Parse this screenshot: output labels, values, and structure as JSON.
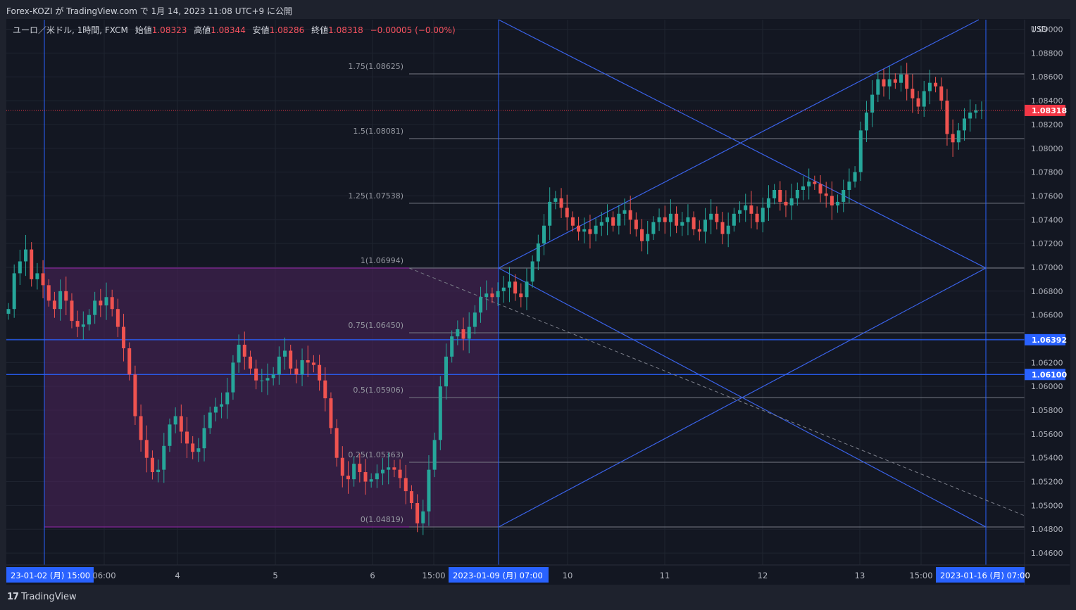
{
  "header": {
    "publish_text": "Forex-KOZI が TradingView.com で 1月 14, 2023 11:08 UTC+9 に公開"
  },
  "legend": {
    "symbol": "ユーロ／米ドル, 1時間, FXCM",
    "open_label": "始値",
    "open_value": "1.08323",
    "high_label": "高値",
    "high_value": "1.08344",
    "low_label": "安値",
    "low_value": "1.08286",
    "close_label": "終値",
    "close_value": "1.08318",
    "change": "−0.00005 (−0.00%)"
  },
  "footer": {
    "brand": "TradingView"
  },
  "chart_data": {
    "type": "candlestick",
    "currency_label": "USD",
    "ylim": [
      1.045,
      1.0908
    ],
    "y_ticks": [
      "1.04600",
      "1.04800",
      "1.05000",
      "1.05200",
      "1.05400",
      "1.05600",
      "1.05800",
      "1.06000",
      "1.06200",
      "1.06400",
      "1.06600",
      "1.06800",
      "1.07000",
      "1.07200",
      "1.07400",
      "1.07600",
      "1.07800",
      "1.08000",
      "1.08200",
      "1.08400",
      "1.08600",
      "1.08800",
      "1.09000"
    ],
    "x_labels": [
      "23-01-02 (月)  15:00",
      "06:00",
      "4",
      "5",
      "6",
      "15:00",
      "2023-01-09 (月)  07:00",
      "10",
      "11",
      "12",
      "13",
      "15:00",
      "2023-01-16 (月)  07:00"
    ],
    "price_tags": [
      {
        "label": "1.08318",
        "price": 1.08318,
        "color": "#f23645"
      },
      {
        "label": "1.06392",
        "price": 1.06392,
        "color": "#2962ff"
      },
      {
        "label": "1.06100",
        "price": 1.061,
        "color": "#2962ff"
      }
    ],
    "fib_levels": [
      {
        "label": "1.75(1.08625)",
        "price": 1.08625
      },
      {
        "label": "1.5(1.08081)",
        "price": 1.08081
      },
      {
        "label": "1.25(1.07538)",
        "price": 1.07538
      },
      {
        "label": "1(1.06994)",
        "price": 1.06994
      },
      {
        "label": "0.75(1.06450)",
        "price": 1.0645
      },
      {
        "label": "0.5(1.05906)",
        "price": 1.05906
      },
      {
        "label": "0.25(1.05363)",
        "price": 1.05363
      },
      {
        "label": "0(1.04819)",
        "price": 1.04819
      }
    ],
    "range_box": {
      "price_high": 1.06994,
      "price_low": 1.04819
    },
    "horizontal_lines": [
      1.06392,
      1.061
    ],
    "price_path": [
      1.0665,
      1.0695,
      1.0705,
      1.0715,
      1.069,
      1.0695,
      1.0685,
      1.0672,
      1.0665,
      1.068,
      1.0672,
      1.0655,
      1.065,
      1.0652,
      1.066,
      1.0672,
      1.0668,
      1.0675,
      1.0665,
      1.065,
      1.0632,
      1.061,
      1.0575,
      1.0555,
      1.054,
      1.0528,
      1.053,
      1.055,
      1.0568,
      1.0575,
      1.0562,
      1.0552,
      1.0545,
      1.0548,
      1.0565,
      1.0578,
      1.0583,
      1.0585,
      1.0595,
      1.062,
      1.0635,
      1.0625,
      1.0615,
      1.0605,
      1.0605,
      1.0607,
      1.061,
      1.0625,
      1.063,
      1.0615,
      1.061,
      1.0622,
      1.062,
      1.0618,
      1.0605,
      1.059,
      1.0565,
      1.054,
      1.0525,
      1.0522,
      1.0535,
      1.0528,
      1.052,
      1.0522,
      1.0527,
      1.053,
      1.0532,
      1.053,
      1.0523,
      1.0512,
      1.0502,
      1.0485,
      1.0495,
      1.053,
      1.0555,
      1.06,
      1.0625,
      1.0642,
      1.0648,
      1.064,
      1.065,
      1.0662,
      1.0675,
      1.0678,
      1.0675,
      1.068,
      1.0683,
      1.0688,
      1.0678,
      1.0675,
      1.0688,
      1.0705,
      1.072,
      1.0735,
      1.0755,
      1.0758,
      1.075,
      1.0742,
      1.0735,
      1.073,
      1.0732,
      1.0728,
      1.0735,
      1.0738,
      1.0742,
      1.0735,
      1.0745,
      1.0748,
      1.074,
      1.0732,
      1.0722,
      1.0728,
      1.0738,
      1.0742,
      1.0738,
      1.0745,
      1.0735,
      1.0738,
      1.0742,
      1.0732,
      1.073,
      1.074,
      1.0745,
      1.0738,
      1.0728,
      1.0735,
      1.0745,
      1.0748,
      1.0752,
      1.0745,
      1.0738,
      1.075,
      1.0758,
      1.0765,
      1.0755,
      1.0752,
      1.0758,
      1.0765,
      1.0768,
      1.0772,
      1.077,
      1.0762,
      1.076,
      1.0752,
      1.0755,
      1.0765,
      1.0772,
      1.078,
      1.0815,
      1.083,
      1.0845,
      1.0858,
      1.0852,
      1.0858,
      1.0855,
      1.0862,
      1.085,
      1.0842,
      1.0835,
      1.0848,
      1.0855,
      1.0852,
      1.084,
      1.0812,
      1.0805,
      1.0815,
      1.0825,
      1.083,
      1.0832,
      1.0832
    ]
  }
}
